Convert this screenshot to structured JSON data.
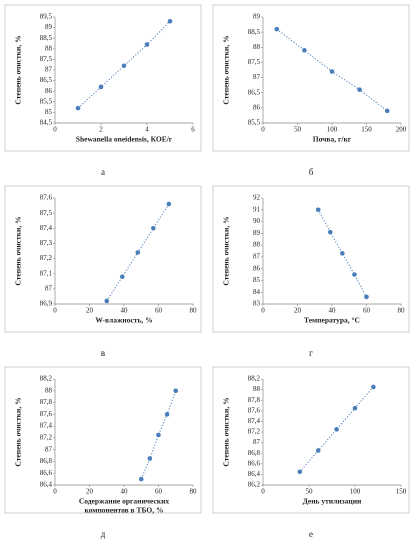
{
  "chart_data": [
    {
      "type": "scatter",
      "caption": "а",
      "xlabel": [
        "Shewanella oneidensis, КОЕ/г"
      ],
      "ylabel": "Степень очистки, %",
      "color": "#4a7ebb",
      "x": [
        1,
        2,
        3,
        4,
        5
      ],
      "values": [
        85.2,
        86.2,
        87.2,
        88.2,
        89.3
      ],
      "xlim": [
        0,
        6
      ],
      "xticks": [
        0,
        2,
        4,
        6
      ],
      "ylim": [
        84.5,
        89.5
      ],
      "yticks": [
        {
          "value": 84.5,
          "label": "84,5"
        },
        85,
        {
          "value": 85.5,
          "label": "85,5"
        },
        86,
        {
          "value": 86.5,
          "label": "86,5"
        },
        87,
        {
          "value": 87.5,
          "label": "87,5"
        },
        88,
        {
          "value": 88.5,
          "label": "88,5"
        },
        89,
        {
          "value": 89.5,
          "label": "89,5"
        }
      ]
    },
    {
      "type": "scatter",
      "caption": "б",
      "xlabel": [
        "Почва, г/кг"
      ],
      "ylabel": "Степень очистки, %",
      "color": "#4a7ebb",
      "x": [
        20,
        60,
        100,
        140,
        180
      ],
      "values": [
        88.6,
        87.9,
        87.2,
        86.6,
        85.9
      ],
      "xlim": [
        0,
        200
      ],
      "xticks": [
        0,
        50,
        100,
        150,
        200
      ],
      "ylim": [
        85.5,
        89
      ],
      "yticks": [
        {
          "value": 85.5,
          "label": "85,5"
        },
        86,
        {
          "value": 86.5,
          "label": "86,5"
        },
        87,
        {
          "value": 87.5,
          "label": "87,5"
        },
        88,
        {
          "value": 88.5,
          "label": "88,5"
        },
        89
      ]
    },
    {
      "type": "scatter",
      "caption": "в",
      "xlabel": [
        "W-влажность, %"
      ],
      "ylabel": "Степень очистки, %",
      "color": "#4a7ebb",
      "x": [
        30,
        39,
        48,
        57,
        66
      ],
      "values": [
        86.92,
        87.08,
        87.24,
        87.4,
        87.56
      ],
      "xlim": [
        0,
        80
      ],
      "xticks": [
        0,
        20,
        40,
        60,
        80
      ],
      "ylim": [
        86.9,
        87.6
      ],
      "yticks": [
        {
          "value": 86.9,
          "label": "86,9"
        },
        87,
        {
          "value": 87.1,
          "label": "87,1"
        },
        {
          "value": 87.2,
          "label": "87,2"
        },
        {
          "value": 87.3,
          "label": "87,3"
        },
        {
          "value": 87.4,
          "label": "87,4"
        },
        {
          "value": 87.5,
          "label": "87,5"
        },
        {
          "value": 87.6,
          "label": "87,6"
        }
      ]
    },
    {
      "type": "scatter",
      "caption": "г",
      "xlabel": [
        "Температура, °С"
      ],
      "ylabel": "Степень очистки, %",
      "color": "#4a7ebb",
      "x": [
        32,
        39,
        46,
        53,
        60
      ],
      "values": [
        91,
        89.1,
        87.3,
        85.5,
        83.6
      ],
      "xlim": [
        0,
        80
      ],
      "xticks": [
        0,
        20,
        40,
        60,
        80
      ],
      "ylim": [
        83,
        92
      ],
      "yticks": [
        83,
        84,
        85,
        86,
        87,
        88,
        89,
        90,
        91,
        92
      ]
    },
    {
      "type": "scatter",
      "caption": "д",
      "xlabel": [
        "Содержание органических",
        "компонентов в ТБО, %"
      ],
      "ylabel": "Степень очистки, %",
      "color": "#4a7ebb",
      "x": [
        50,
        55,
        60,
        65,
        70
      ],
      "values": [
        86.5,
        86.85,
        87.25,
        87.6,
        88.0
      ],
      "xlim": [
        0,
        80
      ],
      "xticks": [
        0,
        20,
        40,
        60,
        80
      ],
      "ylim": [
        86.4,
        88.2
      ],
      "yticks": [
        {
          "value": 86.4,
          "label": "86,4"
        },
        {
          "value": 86.6,
          "label": "86,6"
        },
        {
          "value": 86.8,
          "label": "86,8"
        },
        87,
        {
          "value": 87.2,
          "label": "87,2"
        },
        {
          "value": 87.4,
          "label": "87,4"
        },
        {
          "value": 87.6,
          "label": "87,6"
        },
        {
          "value": 87.8,
          "label": "87,8"
        },
        88,
        {
          "value": 88.2,
          "label": "88,2"
        }
      ]
    },
    {
      "type": "scatter",
      "caption": "е",
      "xlabel": [
        "День утилизации"
      ],
      "ylabel": "Степень очистки, %",
      "color": "#4a7ebb",
      "x": [
        40,
        60,
        80,
        100,
        120
      ],
      "values": [
        86.45,
        86.85,
        87.25,
        87.65,
        88.05
      ],
      "xlim": [
        0,
        150
      ],
      "xticks": [
        0,
        50,
        100,
        150
      ],
      "ylim": [
        86.2,
        88.2
      ],
      "yticks": [
        {
          "value": 86.2,
          "label": "86,2"
        },
        {
          "value": 86.4,
          "label": "86,4"
        },
        {
          "value": 86.6,
          "label": "86,6"
        },
        {
          "value": 86.8,
          "label": "86,8"
        },
        87,
        {
          "value": 87.2,
          "label": "87,2"
        },
        {
          "value": 87.4,
          "label": "87,4"
        },
        {
          "value": 87.6,
          "label": "87,6"
        },
        {
          "value": 87.8,
          "label": "87,8"
        },
        88,
        {
          "value": 88.2,
          "label": "88,2"
        }
      ]
    }
  ]
}
